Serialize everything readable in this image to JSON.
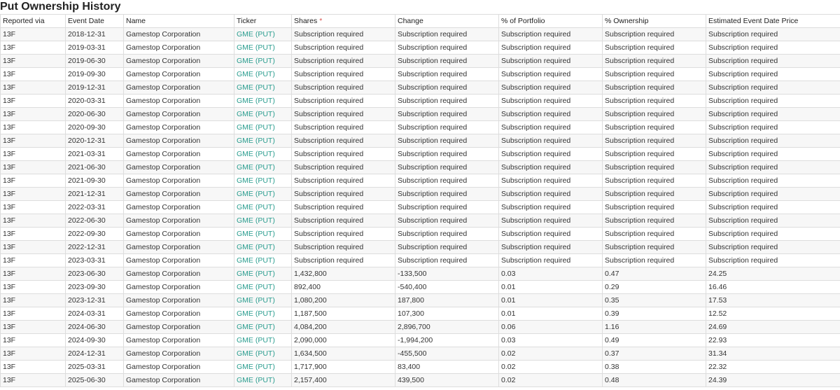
{
  "title": "Put Ownership History",
  "columns": {
    "reported_via": "Reported via",
    "event_date": "Event Date",
    "name": "Name",
    "ticker": "Ticker",
    "shares": "Shares",
    "shares_marker": "*",
    "change": "Change",
    "pct_portfolio": "% of Portfolio",
    "pct_ownership": "% Ownership",
    "est_price": "Estimated Event Date Price"
  },
  "colors": {
    "ticker_link": "#2a9d8f",
    "required_marker": "#d9534f",
    "row_stripe": "#f7f7f7",
    "border": "#dddddd"
  },
  "rows": [
    {
      "via": "13F",
      "date": "2018-12-31",
      "name": "Gamestop Corporation",
      "ticker": "GME (PUT)",
      "shares": "Subscription required",
      "change": "Subscription required",
      "portfolio": "Subscription required",
      "ownership": "Subscription required",
      "price": "Subscription required"
    },
    {
      "via": "13F",
      "date": "2019-03-31",
      "name": "Gamestop Corporation",
      "ticker": "GME (PUT)",
      "shares": "Subscription required",
      "change": "Subscription required",
      "portfolio": "Subscription required",
      "ownership": "Subscription required",
      "price": "Subscription required"
    },
    {
      "via": "13F",
      "date": "2019-06-30",
      "name": "Gamestop Corporation",
      "ticker": "GME (PUT)",
      "shares": "Subscription required",
      "change": "Subscription required",
      "portfolio": "Subscription required",
      "ownership": "Subscription required",
      "price": "Subscription required"
    },
    {
      "via": "13F",
      "date": "2019-09-30",
      "name": "Gamestop Corporation",
      "ticker": "GME (PUT)",
      "shares": "Subscription required",
      "change": "Subscription required",
      "portfolio": "Subscription required",
      "ownership": "Subscription required",
      "price": "Subscription required"
    },
    {
      "via": "13F",
      "date": "2019-12-31",
      "name": "Gamestop Corporation",
      "ticker": "GME (PUT)",
      "shares": "Subscription required",
      "change": "Subscription required",
      "portfolio": "Subscription required",
      "ownership": "Subscription required",
      "price": "Subscription required"
    },
    {
      "via": "13F",
      "date": "2020-03-31",
      "name": "Gamestop Corporation",
      "ticker": "GME (PUT)",
      "shares": "Subscription required",
      "change": "Subscription required",
      "portfolio": "Subscription required",
      "ownership": "Subscription required",
      "price": "Subscription required"
    },
    {
      "via": "13F",
      "date": "2020-06-30",
      "name": "Gamestop Corporation",
      "ticker": "GME (PUT)",
      "shares": "Subscription required",
      "change": "Subscription required",
      "portfolio": "Subscription required",
      "ownership": "Subscription required",
      "price": "Subscription required"
    },
    {
      "via": "13F",
      "date": "2020-09-30",
      "name": "Gamestop Corporation",
      "ticker": "GME (PUT)",
      "shares": "Subscription required",
      "change": "Subscription required",
      "portfolio": "Subscription required",
      "ownership": "Subscription required",
      "price": "Subscription required"
    },
    {
      "via": "13F",
      "date": "2020-12-31",
      "name": "Gamestop Corporation",
      "ticker": "GME (PUT)",
      "shares": "Subscription required",
      "change": "Subscription required",
      "portfolio": "Subscription required",
      "ownership": "Subscription required",
      "price": "Subscription required"
    },
    {
      "via": "13F",
      "date": "2021-03-31",
      "name": "Gamestop Corporation",
      "ticker": "GME (PUT)",
      "shares": "Subscription required",
      "change": "Subscription required",
      "portfolio": "Subscription required",
      "ownership": "Subscription required",
      "price": "Subscription required"
    },
    {
      "via": "13F",
      "date": "2021-06-30",
      "name": "Gamestop Corporation",
      "ticker": "GME (PUT)",
      "shares": "Subscription required",
      "change": "Subscription required",
      "portfolio": "Subscription required",
      "ownership": "Subscription required",
      "price": "Subscription required"
    },
    {
      "via": "13F",
      "date": "2021-09-30",
      "name": "Gamestop Corporation",
      "ticker": "GME (PUT)",
      "shares": "Subscription required",
      "change": "Subscription required",
      "portfolio": "Subscription required",
      "ownership": "Subscription required",
      "price": "Subscription required"
    },
    {
      "via": "13F",
      "date": "2021-12-31",
      "name": "Gamestop Corporation",
      "ticker": "GME (PUT)",
      "shares": "Subscription required",
      "change": "Subscription required",
      "portfolio": "Subscription required",
      "ownership": "Subscription required",
      "price": "Subscription required"
    },
    {
      "via": "13F",
      "date": "2022-03-31",
      "name": "Gamestop Corporation",
      "ticker": "GME (PUT)",
      "shares": "Subscription required",
      "change": "Subscription required",
      "portfolio": "Subscription required",
      "ownership": "Subscription required",
      "price": "Subscription required"
    },
    {
      "via": "13F",
      "date": "2022-06-30",
      "name": "Gamestop Corporation",
      "ticker": "GME (PUT)",
      "shares": "Subscription required",
      "change": "Subscription required",
      "portfolio": "Subscription required",
      "ownership": "Subscription required",
      "price": "Subscription required"
    },
    {
      "via": "13F",
      "date": "2022-09-30",
      "name": "Gamestop Corporation",
      "ticker": "GME (PUT)",
      "shares": "Subscription required",
      "change": "Subscription required",
      "portfolio": "Subscription required",
      "ownership": "Subscription required",
      "price": "Subscription required"
    },
    {
      "via": "13F",
      "date": "2022-12-31",
      "name": "Gamestop Corporation",
      "ticker": "GME (PUT)",
      "shares": "Subscription required",
      "change": "Subscription required",
      "portfolio": "Subscription required",
      "ownership": "Subscription required",
      "price": "Subscription required"
    },
    {
      "via": "13F",
      "date": "2023-03-31",
      "name": "Gamestop Corporation",
      "ticker": "GME (PUT)",
      "shares": "Subscription required",
      "change": "Subscription required",
      "portfolio": "Subscription required",
      "ownership": "Subscription required",
      "price": "Subscription required"
    },
    {
      "via": "13F",
      "date": "2023-06-30",
      "name": "Gamestop Corporation",
      "ticker": "GME (PUT)",
      "shares": "1,432,800",
      "change": "-133,500",
      "portfolio": "0.03",
      "ownership": "0.47",
      "price": "24.25"
    },
    {
      "via": "13F",
      "date": "2023-09-30",
      "name": "Gamestop Corporation",
      "ticker": "GME (PUT)",
      "shares": "892,400",
      "change": "-540,400",
      "portfolio": "0.01",
      "ownership": "0.29",
      "price": "16.46"
    },
    {
      "via": "13F",
      "date": "2023-12-31",
      "name": "Gamestop Corporation",
      "ticker": "GME (PUT)",
      "shares": "1,080,200",
      "change": "187,800",
      "portfolio": "0.01",
      "ownership": "0.35",
      "price": "17.53"
    },
    {
      "via": "13F",
      "date": "2024-03-31",
      "name": "Gamestop Corporation",
      "ticker": "GME (PUT)",
      "shares": "1,187,500",
      "change": "107,300",
      "portfolio": "0.01",
      "ownership": "0.39",
      "price": "12.52"
    },
    {
      "via": "13F",
      "date": "2024-06-30",
      "name": "Gamestop Corporation",
      "ticker": "GME (PUT)",
      "shares": "4,084,200",
      "change": "2,896,700",
      "portfolio": "0.06",
      "ownership": "1.16",
      "price": "24.69"
    },
    {
      "via": "13F",
      "date": "2024-09-30",
      "name": "Gamestop Corporation",
      "ticker": "GME (PUT)",
      "shares": "2,090,000",
      "change": "-1,994,200",
      "portfolio": "0.03",
      "ownership": "0.49",
      "price": "22.93"
    },
    {
      "via": "13F",
      "date": "2024-12-31",
      "name": "Gamestop Corporation",
      "ticker": "GME (PUT)",
      "shares": "1,634,500",
      "change": "-455,500",
      "portfolio": "0.02",
      "ownership": "0.37",
      "price": "31.34"
    },
    {
      "via": "13F",
      "date": "2025-03-31",
      "name": "Gamestop Corporation",
      "ticker": "GME (PUT)",
      "shares": "1,717,900",
      "change": "83,400",
      "portfolio": "0.02",
      "ownership": "0.38",
      "price": "22.32"
    },
    {
      "via": "13F",
      "date": "2025-06-30",
      "name": "Gamestop Corporation",
      "ticker": "GME (PUT)",
      "shares": "2,157,400",
      "change": "439,500",
      "portfolio": "0.02",
      "ownership": "0.48",
      "price": "24.39"
    }
  ]
}
